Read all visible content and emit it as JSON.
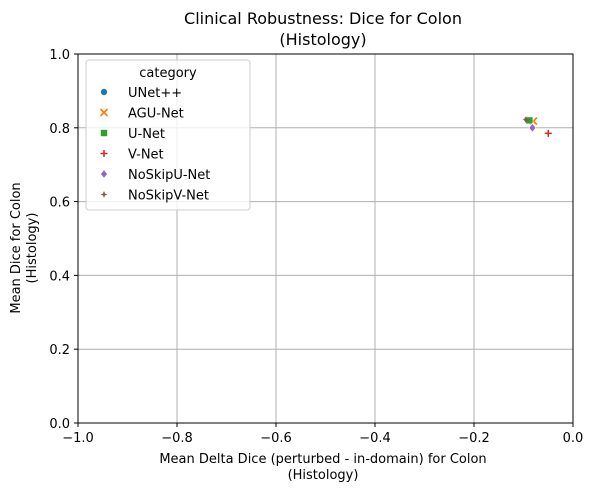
{
  "chart_data": {
    "type": "scatter",
    "title": [
      "Clinical Robustness: Dice for Colon",
      "(Histology)"
    ],
    "xlabel": [
      "Mean Delta Dice (perturbed - in-domain) for Colon",
      "(Histology)"
    ],
    "ylabel": [
      "Mean Dice for Colon",
      "(Histology)"
    ],
    "xlim": [
      -1.0,
      0.0
    ],
    "ylim": [
      0.0,
      1.0
    ],
    "xticks": [
      -1.0,
      -0.8,
      -0.6,
      -0.4,
      -0.2,
      0.0
    ],
    "xtick_labels": [
      "−1.0",
      "−0.8",
      "−0.6",
      "−0.4",
      "−0.2",
      "0.0"
    ],
    "yticks": [
      0.0,
      0.2,
      0.4,
      0.6,
      0.8,
      1.0
    ],
    "ytick_labels": [
      "0.0",
      "0.2",
      "0.4",
      "0.6",
      "0.8",
      "1.0"
    ],
    "grid": true,
    "legend": {
      "title": "category",
      "placement": "top-left"
    },
    "series": [
      {
        "name": "UNet++",
        "marker": "circle",
        "color": "#1f77b4",
        "points": [
          {
            "x": -0.092,
            "y": 0.822
          }
        ]
      },
      {
        "name": "AGU-Net",
        "marker": "x",
        "color": "#ff7f0e",
        "points": [
          {
            "x": -0.08,
            "y": 0.818
          }
        ]
      },
      {
        "name": "U-Net",
        "marker": "square",
        "color": "#2ca02c",
        "points": [
          {
            "x": -0.088,
            "y": 0.82
          }
        ]
      },
      {
        "name": "V-Net",
        "marker": "plus",
        "color": "#d62728",
        "points": [
          {
            "x": -0.05,
            "y": 0.785
          }
        ]
      },
      {
        "name": "NoSkipU-Net",
        "marker": "diamond",
        "color": "#9467bd",
        "points": [
          {
            "x": -0.082,
            "y": 0.8
          }
        ]
      },
      {
        "name": "NoSkipV-Net",
        "marker": "star",
        "color": "#8c564b",
        "points": [
          {
            "x": -0.095,
            "y": 0.822
          }
        ]
      }
    ]
  }
}
